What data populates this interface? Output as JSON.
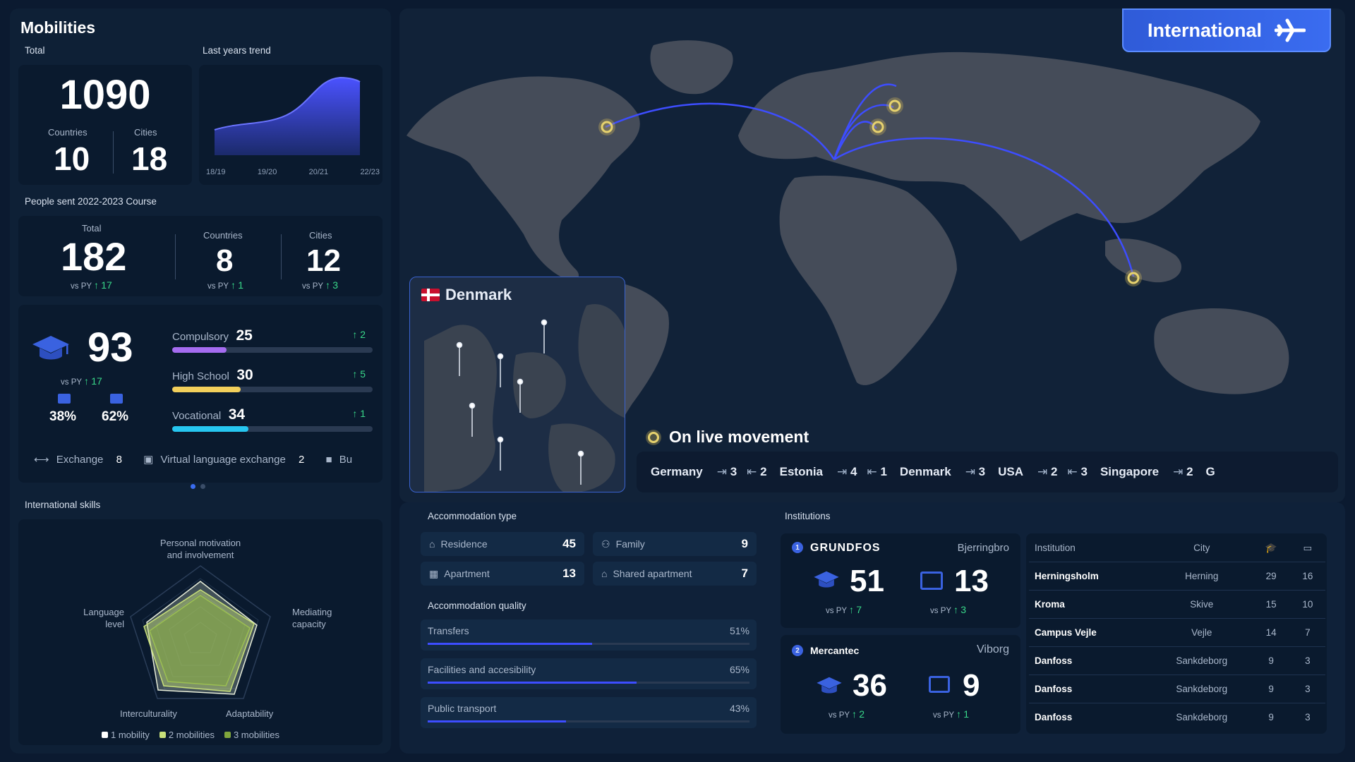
{
  "mobilities": {
    "title": "Mobilities",
    "total_label": "Total",
    "trend_label": "Last years trend",
    "total": "1090",
    "countries_label": "Countries",
    "countries": "10",
    "cities_label": "Cities",
    "cities": "18",
    "trend_ticks": [
      "18/19",
      "19/20",
      "20/21",
      "22/23"
    ]
  },
  "people_sent": {
    "title": "People sent 2022-2023 Course",
    "total_label": "Total",
    "total": "182",
    "total_vs": "17",
    "countries_label": "Countries",
    "countries": "8",
    "countries_vs": "1",
    "cities_label": "Cities",
    "cities": "12",
    "cities_vs": "3",
    "vs_label": "vs PY"
  },
  "students": {
    "value": "93",
    "vs": "17",
    "pct_a": "38%",
    "pct_b": "62%",
    "bars": [
      {
        "label": "Compulsory",
        "value": "25",
        "delta": "2",
        "fill": 0.27,
        "color": "#a56cf0"
      },
      {
        "label": "High School",
        "value": "30",
        "delta": "5",
        "fill": 0.34,
        "color": "#f2cf5b"
      },
      {
        "label": "Vocational",
        "value": "34",
        "delta": "1",
        "fill": 0.38,
        "color": "#26c6f0"
      }
    ],
    "exchange_label": "Exchange",
    "exchange": "8",
    "virtual_label": "Virtual language exchange",
    "virtual": "2",
    "bu_label": "Bu"
  },
  "skills": {
    "title": "International skills",
    "axes": [
      "Personal motivation\nand involvement",
      "Mediating\ncapacity",
      "Adaptability",
      "Interculturality",
      "Language\nlevel"
    ],
    "legend": [
      "1 mobility",
      "2 mobilities",
      "3 mobilities"
    ],
    "legend_colors": [
      "#ffffff",
      "#c8e07a",
      "#7fa63c"
    ]
  },
  "map": {
    "badge": "International",
    "denmark_label": "Denmark",
    "live_label": "On live movement",
    "ticker": [
      {
        "country": "Germany",
        "out": "3",
        "in": "2"
      },
      {
        "country": "Estonia",
        "out": "4",
        "in": "1"
      },
      {
        "country": "Denmark",
        "out": "3",
        "in": ""
      },
      {
        "country": "USA",
        "out": "2",
        "in": "3"
      },
      {
        "country": "Singapore",
        "out": "2",
        "in": ""
      },
      {
        "country": "G",
        "out": "",
        "in": ""
      }
    ]
  },
  "accommodation": {
    "type_title": "Accommodation type",
    "items": [
      {
        "label": "Residence",
        "value": "45"
      },
      {
        "label": "Family",
        "value": "9"
      },
      {
        "label": "Apartment",
        "value": "13"
      },
      {
        "label": "Shared apartment",
        "value": "7"
      }
    ],
    "quality_title": "Accommodation quality",
    "quality": [
      {
        "label": "Transfers",
        "pct": "51%",
        "fill": 0.51
      },
      {
        "label": "Facilities and accesibility",
        "pct": "65%",
        "fill": 0.65
      },
      {
        "label": "Public transport",
        "pct": "43%",
        "fill": 0.43
      }
    ]
  },
  "institutions": {
    "title": "Institutions",
    "cards": [
      {
        "rank": "1",
        "name": "GRUNDFOS",
        "city": "Bjerringbro",
        "students": "51",
        "students_vs": "7",
        "teachers": "13",
        "teachers_vs": "3"
      },
      {
        "rank": "2",
        "name": "Mercantec",
        "city": "Viborg",
        "students": "36",
        "students_vs": "2",
        "teachers": "9",
        "teachers_vs": "1"
      }
    ],
    "vs_label": "vs PY",
    "table_headers": {
      "institution": "Institution",
      "city": "City"
    },
    "rows": [
      {
        "name": "Herningsholm",
        "city": "Herning",
        "a": "29",
        "b": "16"
      },
      {
        "name": "Kroma",
        "city": "Skive",
        "a": "15",
        "b": "10"
      },
      {
        "name": "Campus Vejle",
        "city": "Vejle",
        "a": "14",
        "b": "7"
      },
      {
        "name": "Danfoss",
        "city": "Sankdeborg",
        "a": "9",
        "b": "3"
      },
      {
        "name": "Danfoss",
        "city": "Sankdeborg",
        "a": "9",
        "b": "3"
      },
      {
        "name": "Danfoss",
        "city": "Sankdeborg",
        "a": "9",
        "b": "3"
      }
    ]
  }
}
